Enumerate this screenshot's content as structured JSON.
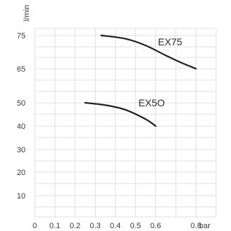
{
  "chart_data": {
    "type": "line",
    "title": "",
    "xlabel": "bar",
    "ylabel": "l/min",
    "xlim": [
      0,
      0.9
    ],
    "ylim": [
      0,
      75
    ],
    "grid": true,
    "x_ticks": [
      "0",
      "0.1",
      "0.2",
      "0.3",
      "0.4",
      "0.5",
      "0.6",
      "0.8"
    ],
    "y_ticks": [
      "10",
      "20",
      "30",
      "40",
      "50",
      "65",
      "75"
    ],
    "series": [
      {
        "name": "EX75",
        "x": [
          0.33,
          0.45,
          0.55,
          0.65,
          0.72,
          0.8
        ],
        "y": [
          75,
          74,
          72,
          69,
          67,
          65
        ]
      },
      {
        "name": "EX5O",
        "x": [
          0.25,
          0.35,
          0.45,
          0.55,
          0.6
        ],
        "y": [
          50,
          49,
          47,
          43,
          40
        ]
      }
    ]
  }
}
